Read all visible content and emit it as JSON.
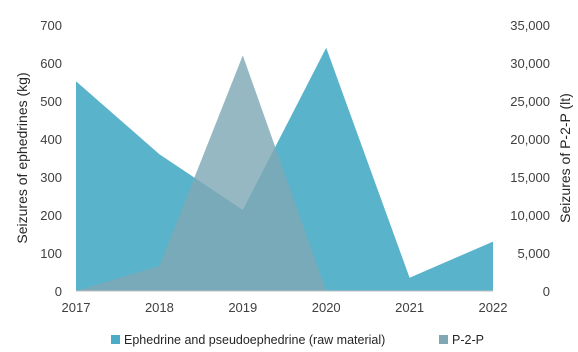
{
  "chart_data": {
    "type": "area",
    "x": [
      2017,
      2018,
      2019,
      2020,
      2021,
      2022
    ],
    "x_tick_labels": [
      "2017",
      "2018",
      "2019",
      "2020",
      "2021",
      "2022"
    ],
    "xlim": [
      2017,
      2022
    ],
    "y_left": {
      "label": "Seizures of ephedrines (kg)",
      "ylim": [
        0,
        700
      ],
      "ticks": [
        0,
        100,
        200,
        300,
        400,
        500,
        600,
        700
      ],
      "tick_labels": [
        "0",
        "100",
        "200",
        "300",
        "400",
        "500",
        "600",
        "700"
      ]
    },
    "y_right": {
      "label": "Seizures of P-2-P (lt)",
      "ylim": [
        0,
        35000
      ],
      "ticks": [
        0,
        5000,
        10000,
        15000,
        20000,
        25000,
        30000,
        35000
      ],
      "tick_labels": [
        "0",
        "5,000",
        "10,000",
        "15,000",
        "20,000",
        "25,000",
        "30,000",
        "35,000"
      ]
    },
    "series": [
      {
        "name": "Ephedrine and pseudoephedrine (raw material)",
        "axis": "left",
        "color": "#4BACC6",
        "values": [
          552,
          360,
          213,
          640,
          35,
          130
        ]
      },
      {
        "name": "P-2-P",
        "axis": "right",
        "color": "#7FA8B4",
        "values": [
          0,
          3300,
          31000,
          0,
          null,
          null
        ]
      }
    ],
    "grid": false,
    "legend_position": "bottom"
  }
}
